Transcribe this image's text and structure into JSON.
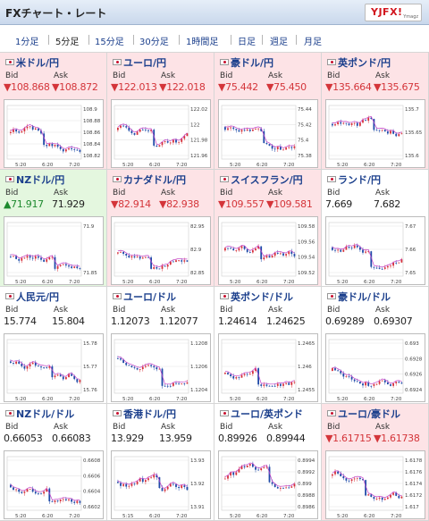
{
  "header": {
    "title": "FXチャート・レート",
    "logo_main": "YJFX!",
    "logo_sub": "Ymagz"
  },
  "tabs": [
    {
      "label": "1分足",
      "active": false
    },
    {
      "label": "5分足",
      "active": true
    },
    {
      "label": "15分足",
      "active": false
    },
    {
      "label": "30分足",
      "active": false
    },
    {
      "label": "1時間足",
      "active": false
    },
    {
      "label": "日足",
      "active": false
    },
    {
      "label": "週足",
      "active": false
    },
    {
      "label": "月足",
      "active": false
    }
  ],
  "colors": {
    "down": "#d4353a",
    "up": "#1d8a2e",
    "candle_up": "#d6303a",
    "candle_down": "#1f4aa8",
    "ma": "#c23fc7"
  },
  "bid_label": "Bid",
  "ask_label": "Ask",
  "cells": [
    {
      "pair": "米ドル/円",
      "trend": "down",
      "bid": "▼108.868",
      "ask": "▼108.872",
      "ticks": [
        "108.9",
        "108.88",
        "108.86",
        "108.84",
        "108.82"
      ],
      "x": [
        "5:20",
        "6:20",
        "7:20"
      ]
    },
    {
      "pair": "ユーロ/円",
      "trend": "down",
      "bid": "▼122.013",
      "ask": "▼122.018",
      "ticks": [
        "122.02",
        "122",
        "121.98",
        "121.96"
      ],
      "x": [
        "5:20",
        "6:20",
        "7:20"
      ]
    },
    {
      "pair": "豪ドル/円",
      "trend": "down",
      "bid": "▼75.442",
      "ask": "▼75.450",
      "ticks": [
        "75.44",
        "75.42",
        "75.4",
        "75.38"
      ],
      "x": [
        "5:20",
        "6:20",
        "7:20"
      ]
    },
    {
      "pair": "英ポンド/円",
      "trend": "down",
      "bid": "▼135.664",
      "ask": "▼135.675",
      "ticks": [
        "135.7",
        "135.65",
        "135.6"
      ],
      "x": [
        "5:20",
        "6:20",
        "7:20"
      ]
    },
    {
      "pair": "NZドル/円",
      "trend": "up",
      "bid": "▲71.917",
      "ask": "71.929",
      "ask_trend": "flat",
      "ticks": [
        "71.9",
        "71.85"
      ],
      "x": [
        "5:20",
        "6:20",
        "7:20"
      ]
    },
    {
      "pair": "カナダドル/円",
      "trend": "down",
      "bid": "▼82.914",
      "ask": "▼82.938",
      "ticks": [
        "82.95",
        "82.9",
        "82.85"
      ],
      "x": [
        "5:20",
        "6:20",
        "7:20"
      ]
    },
    {
      "pair": "スイスフラン/円",
      "trend": "down",
      "bid": "▼109.557",
      "ask": "▼109.581",
      "ticks": [
        "109.58",
        "109.56",
        "109.54",
        "109.52"
      ],
      "x": [
        "5:20",
        "6:20",
        "7:20"
      ]
    },
    {
      "pair": "ランド/円",
      "trend": "flat",
      "bid": "7.669",
      "ask": "7.682",
      "ticks": [
        "7.67",
        "7.66",
        "7.65"
      ],
      "x": [
        "5:20",
        "6:20",
        "7:20"
      ]
    },
    {
      "pair": "人民元/円",
      "trend": "flat",
      "bid": "15.774",
      "ask": "15.804",
      "ticks": [
        "15.78",
        "15.77",
        "15.76"
      ],
      "x": [
        "5:20",
        "6:20",
        "7:20"
      ]
    },
    {
      "pair": "ユーロ/ドル",
      "trend": "flat",
      "bid": "1.12073",
      "ask": "1.12077",
      "ticks": [
        "1.1208",
        "1.1206",
        "1.1204"
      ],
      "x": [
        "5:20",
        "6:20",
        "7:20"
      ]
    },
    {
      "pair": "英ポンド/ドル",
      "trend": "flat",
      "bid": "1.24614",
      "ask": "1.24625",
      "ticks": [
        "1.2465",
        "1.246",
        "1.2455"
      ],
      "x": [
        "5:20",
        "6:20",
        "7:20"
      ]
    },
    {
      "pair": "豪ドル/ドル",
      "trend": "flat",
      "bid": "0.69289",
      "ask": "0.69307",
      "ticks": [
        "0.693",
        "0.6928",
        "0.6926",
        "0.6924"
      ],
      "x": [
        "5:20",
        "6:20",
        "7:20"
      ]
    },
    {
      "pair": "NZドル/ドル",
      "trend": "flat",
      "bid": "0.66053",
      "ask": "0.66083",
      "ticks": [
        "0.6608",
        "0.6606",
        "0.6604",
        "0.6602"
      ],
      "x": [
        "5:20",
        "6:20",
        "7:20"
      ]
    },
    {
      "pair": "香港ドル/円",
      "trend": "flat",
      "bid": "13.929",
      "ask": "13.959",
      "ticks": [
        "13.93",
        "13.92",
        "13.91"
      ],
      "x": [
        "5:15",
        "6:20",
        "7:20"
      ]
    },
    {
      "pair": "ユーロ/英ポンド",
      "trend": "flat",
      "bid": "0.89926",
      "ask": "0.89944",
      "ticks": [
        "0.8994",
        "0.8992",
        "0.899",
        "0.8988",
        "0.8986"
      ],
      "x": [
        "5:20",
        "6:20",
        "7:20"
      ]
    },
    {
      "pair": "ユーロ/豪ドル",
      "trend": "down",
      "bid": "▼1.61715",
      "ask": "▼1.61738",
      "ticks": [
        "1.6178",
        "1.6176",
        "1.6174",
        "1.6172",
        "1.617"
      ],
      "x": [
        "5:20",
        "6:20",
        "7:20"
      ]
    }
  ]
}
